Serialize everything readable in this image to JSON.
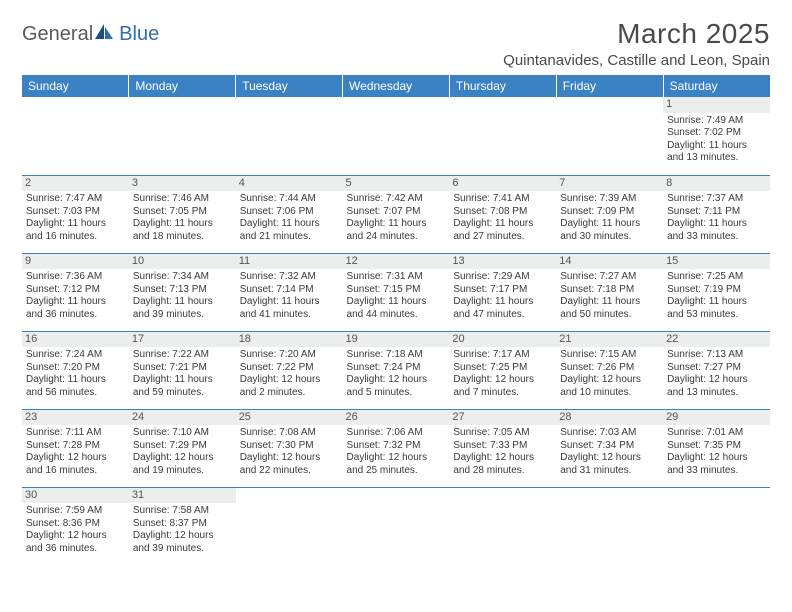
{
  "logo": {
    "part1": "General",
    "part2": "Blue"
  },
  "title": "March 2025",
  "location": "Quintanavides, Castille and Leon, Spain",
  "colors": {
    "header_bg": "#3b82c4",
    "header_text": "#ffffff",
    "border": "#3b82c4",
    "daynum_bg": "#eceded",
    "logo_gray": "#5a5a5a",
    "logo_blue": "#2f6fae",
    "page_bg": "#ffffff"
  },
  "weekdays": [
    "Sunday",
    "Monday",
    "Tuesday",
    "Wednesday",
    "Thursday",
    "Friday",
    "Saturday"
  ],
  "weeks": [
    [
      null,
      null,
      null,
      null,
      null,
      null,
      {
        "d": "1",
        "sr": "7:49 AM",
        "ss": "7:02 PM",
        "dl": "11 hours and 13 minutes."
      }
    ],
    [
      {
        "d": "2",
        "sr": "7:47 AM",
        "ss": "7:03 PM",
        "dl": "11 hours and 16 minutes."
      },
      {
        "d": "3",
        "sr": "7:46 AM",
        "ss": "7:05 PM",
        "dl": "11 hours and 18 minutes."
      },
      {
        "d": "4",
        "sr": "7:44 AM",
        "ss": "7:06 PM",
        "dl": "11 hours and 21 minutes."
      },
      {
        "d": "5",
        "sr": "7:42 AM",
        "ss": "7:07 PM",
        "dl": "11 hours and 24 minutes."
      },
      {
        "d": "6",
        "sr": "7:41 AM",
        "ss": "7:08 PM",
        "dl": "11 hours and 27 minutes."
      },
      {
        "d": "7",
        "sr": "7:39 AM",
        "ss": "7:09 PM",
        "dl": "11 hours and 30 minutes."
      },
      {
        "d": "8",
        "sr": "7:37 AM",
        "ss": "7:11 PM",
        "dl": "11 hours and 33 minutes."
      }
    ],
    [
      {
        "d": "9",
        "sr": "7:36 AM",
        "ss": "7:12 PM",
        "dl": "11 hours and 36 minutes."
      },
      {
        "d": "10",
        "sr": "7:34 AM",
        "ss": "7:13 PM",
        "dl": "11 hours and 39 minutes."
      },
      {
        "d": "11",
        "sr": "7:32 AM",
        "ss": "7:14 PM",
        "dl": "11 hours and 41 minutes."
      },
      {
        "d": "12",
        "sr": "7:31 AM",
        "ss": "7:15 PM",
        "dl": "11 hours and 44 minutes."
      },
      {
        "d": "13",
        "sr": "7:29 AM",
        "ss": "7:17 PM",
        "dl": "11 hours and 47 minutes."
      },
      {
        "d": "14",
        "sr": "7:27 AM",
        "ss": "7:18 PM",
        "dl": "11 hours and 50 minutes."
      },
      {
        "d": "15",
        "sr": "7:25 AM",
        "ss": "7:19 PM",
        "dl": "11 hours and 53 minutes."
      }
    ],
    [
      {
        "d": "16",
        "sr": "7:24 AM",
        "ss": "7:20 PM",
        "dl": "11 hours and 56 minutes."
      },
      {
        "d": "17",
        "sr": "7:22 AM",
        "ss": "7:21 PM",
        "dl": "11 hours and 59 minutes."
      },
      {
        "d": "18",
        "sr": "7:20 AM",
        "ss": "7:22 PM",
        "dl": "12 hours and 2 minutes."
      },
      {
        "d": "19",
        "sr": "7:18 AM",
        "ss": "7:24 PM",
        "dl": "12 hours and 5 minutes."
      },
      {
        "d": "20",
        "sr": "7:17 AM",
        "ss": "7:25 PM",
        "dl": "12 hours and 7 minutes."
      },
      {
        "d": "21",
        "sr": "7:15 AM",
        "ss": "7:26 PM",
        "dl": "12 hours and 10 minutes."
      },
      {
        "d": "22",
        "sr": "7:13 AM",
        "ss": "7:27 PM",
        "dl": "12 hours and 13 minutes."
      }
    ],
    [
      {
        "d": "23",
        "sr": "7:11 AM",
        "ss": "7:28 PM",
        "dl": "12 hours and 16 minutes."
      },
      {
        "d": "24",
        "sr": "7:10 AM",
        "ss": "7:29 PM",
        "dl": "12 hours and 19 minutes."
      },
      {
        "d": "25",
        "sr": "7:08 AM",
        "ss": "7:30 PM",
        "dl": "12 hours and 22 minutes."
      },
      {
        "d": "26",
        "sr": "7:06 AM",
        "ss": "7:32 PM",
        "dl": "12 hours and 25 minutes."
      },
      {
        "d": "27",
        "sr": "7:05 AM",
        "ss": "7:33 PM",
        "dl": "12 hours and 28 minutes."
      },
      {
        "d": "28",
        "sr": "7:03 AM",
        "ss": "7:34 PM",
        "dl": "12 hours and 31 minutes."
      },
      {
        "d": "29",
        "sr": "7:01 AM",
        "ss": "7:35 PM",
        "dl": "12 hours and 33 minutes."
      }
    ],
    [
      {
        "d": "30",
        "sr": "7:59 AM",
        "ss": "8:36 PM",
        "dl": "12 hours and 36 minutes."
      },
      {
        "d": "31",
        "sr": "7:58 AM",
        "ss": "8:37 PM",
        "dl": "12 hours and 39 minutes."
      },
      null,
      null,
      null,
      null,
      null
    ]
  ],
  "labels": {
    "sunrise": "Sunrise:",
    "sunset": "Sunset:",
    "daylight": "Daylight:"
  }
}
